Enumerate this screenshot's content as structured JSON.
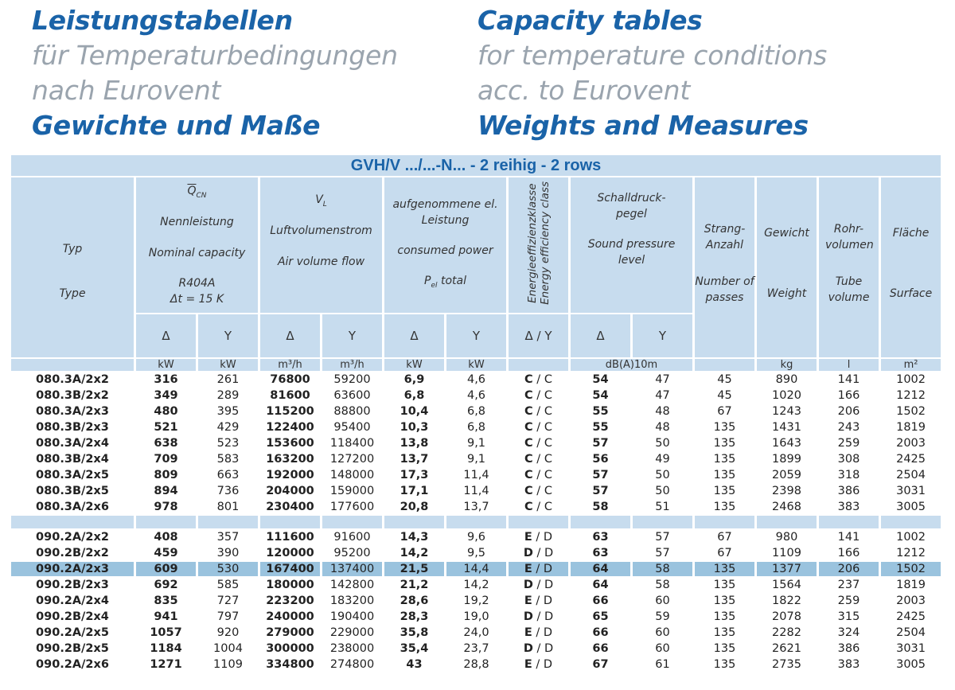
{
  "heading_de": {
    "line1": "Leistungstabellen",
    "line2": "für Temperaturbedingungen",
    "line3": "nach Eurovent",
    "line4": "Gewichte und Maße"
  },
  "heading_en": {
    "line1": "Capacity tables",
    "line2": "for temperature conditions",
    "line3": "acc. to Eurovent",
    "line4": "Weights and Measures"
  },
  "table": {
    "title": "GVH/V .../...-N... - 2 reihig - 2 rows",
    "headers": {
      "typ_de": "Typ",
      "typ_en": "Type",
      "cap_symbol": "Q",
      "cap_symbol_sub": "CN",
      "cap_de": "Nennleistung",
      "cap_en": "Nominal capacity",
      "cap_refrig": "R404A",
      "cap_dt": "Δt = 15 K",
      "air_symbol": "V",
      "air_symbol_sub": "L",
      "air_de": "Luftvolumenstrom",
      "air_en": "Air volume flow",
      "pow_de": "aufgenommene el. Leistung",
      "pow_en": "consumed power",
      "pow_symbol": "P",
      "pow_symbol_sub": "el",
      "pow_total": "total",
      "eff_de": "Energieeffizienzklasse",
      "eff_en": "Energy efficiency class",
      "snd_de": "Schalldruck-pegel",
      "snd_en": "Sound pressure level",
      "pass_de": "Strang-Anzahl",
      "pass_en": "Number of passes",
      "wt_de": "Gewicht",
      "wt_en": "Weight",
      "tube_de": "Rohr-volumen",
      "tube_en": "Tube volume",
      "surf_de": "Fläche",
      "surf_en": "Surface"
    },
    "symbols": {
      "delta": "Δ",
      "star": "Y",
      "delta_star": "Δ / Y"
    },
    "units": {
      "kw": "kW",
      "m3h": "m³/h",
      "dba": "dB(A)10m",
      "kg": "kg",
      "l": "l",
      "m2": "m²"
    },
    "group1": [
      {
        "typ": "080.3A/2x2",
        "cap_d": "316",
        "cap_y": "261",
        "air_d": "76800",
        "air_y": "59200",
        "pow_d": "6,9",
        "pow_y": "4,6",
        "eff_a": "C",
        "eff_b": "C",
        "snd_d": "54",
        "snd_y": "47",
        "passes": "45",
        "weight": "890",
        "tube": "141",
        "surface": "1002"
      },
      {
        "typ": "080.3B/2x2",
        "cap_d": "349",
        "cap_y": "289",
        "air_d": "81600",
        "air_y": "63600",
        "pow_d": "6,8",
        "pow_y": "4,6",
        "eff_a": "C",
        "eff_b": "C",
        "snd_d": "54",
        "snd_y": "47",
        "passes": "45",
        "weight": "1020",
        "tube": "166",
        "surface": "1212"
      },
      {
        "typ": "080.3A/2x3",
        "cap_d": "480",
        "cap_y": "395",
        "air_d": "115200",
        "air_y": "88800",
        "pow_d": "10,4",
        "pow_y": "6,8",
        "eff_a": "C",
        "eff_b": "C",
        "snd_d": "55",
        "snd_y": "48",
        "passes": "67",
        "weight": "1243",
        "tube": "206",
        "surface": "1502"
      },
      {
        "typ": "080.3B/2x3",
        "cap_d": "521",
        "cap_y": "429",
        "air_d": "122400",
        "air_y": "95400",
        "pow_d": "10,3",
        "pow_y": "6,8",
        "eff_a": "C",
        "eff_b": "C",
        "snd_d": "55",
        "snd_y": "48",
        "passes": "135",
        "weight": "1431",
        "tube": "243",
        "surface": "1819"
      },
      {
        "typ": "080.3A/2x4",
        "cap_d": "638",
        "cap_y": "523",
        "air_d": "153600",
        "air_y": "118400",
        "pow_d": "13,8",
        "pow_y": "9,1",
        "eff_a": "C",
        "eff_b": "C",
        "snd_d": "57",
        "snd_y": "50",
        "passes": "135",
        "weight": "1643",
        "tube": "259",
        "surface": "2003"
      },
      {
        "typ": "080.3B/2x4",
        "cap_d": "709",
        "cap_y": "583",
        "air_d": "163200",
        "air_y": "127200",
        "pow_d": "13,7",
        "pow_y": "9,1",
        "eff_a": "C",
        "eff_b": "C",
        "snd_d": "56",
        "snd_y": "49",
        "passes": "135",
        "weight": "1899",
        "tube": "308",
        "surface": "2425"
      },
      {
        "typ": "080.3A/2x5",
        "cap_d": "809",
        "cap_y": "663",
        "air_d": "192000",
        "air_y": "148000",
        "pow_d": "17,3",
        "pow_y": "11,4",
        "eff_a": "C",
        "eff_b": "C",
        "snd_d": "57",
        "snd_y": "50",
        "passes": "135",
        "weight": "2059",
        "tube": "318",
        "surface": "2504"
      },
      {
        "typ": "080.3B/2x5",
        "cap_d": "894",
        "cap_y": "736",
        "air_d": "204000",
        "air_y": "159000",
        "pow_d": "17,1",
        "pow_y": "11,4",
        "eff_a": "C",
        "eff_b": "C",
        "snd_d": "57",
        "snd_y": "50",
        "passes": "135",
        "weight": "2398",
        "tube": "386",
        "surface": "3031"
      },
      {
        "typ": "080.3A/2x6",
        "cap_d": "978",
        "cap_y": "801",
        "air_d": "230400",
        "air_y": "177600",
        "pow_d": "20,8",
        "pow_y": "13,7",
        "eff_a": "C",
        "eff_b": "C",
        "snd_d": "58",
        "snd_y": "51",
        "passes": "135",
        "weight": "2468",
        "tube": "383",
        "surface": "3005"
      }
    ],
    "group2": [
      {
        "typ": "090.2A/2x2",
        "cap_d": "408",
        "cap_y": "357",
        "air_d": "111600",
        "air_y": "91600",
        "pow_d": "14,3",
        "pow_y": "9,6",
        "eff_a": "E",
        "eff_b": "D",
        "snd_d": "63",
        "snd_y": "57",
        "passes": "67",
        "weight": "980",
        "tube": "141",
        "surface": "1002"
      },
      {
        "typ": "090.2B/2x2",
        "cap_d": "459",
        "cap_y": "390",
        "air_d": "120000",
        "air_y": "95200",
        "pow_d": "14,2",
        "pow_y": "9,5",
        "eff_a": "D",
        "eff_b": "D",
        "snd_d": "63",
        "snd_y": "57",
        "passes": "67",
        "weight": "1109",
        "tube": "166",
        "surface": "1212"
      },
      {
        "typ": "090.2A/2x3",
        "cap_d": "609",
        "cap_y": "530",
        "air_d": "167400",
        "air_y": "137400",
        "pow_d": "21,5",
        "pow_y": "14,4",
        "eff_a": "E",
        "eff_b": "D",
        "snd_d": "64",
        "snd_y": "58",
        "passes": "135",
        "weight": "1377",
        "tube": "206",
        "surface": "1502",
        "highlight": true
      },
      {
        "typ": "090.2B/2x3",
        "cap_d": "692",
        "cap_y": "585",
        "air_d": "180000",
        "air_y": "142800",
        "pow_d": "21,2",
        "pow_y": "14,2",
        "eff_a": "D",
        "eff_b": "D",
        "snd_d": "64",
        "snd_y": "58",
        "passes": "135",
        "weight": "1564",
        "tube": "237",
        "surface": "1819"
      },
      {
        "typ": "090.2A/2x4",
        "cap_d": "835",
        "cap_y": "727",
        "air_d": "223200",
        "air_y": "183200",
        "pow_d": "28,6",
        "pow_y": "19,2",
        "eff_a": "E",
        "eff_b": "D",
        "snd_d": "66",
        "snd_y": "60",
        "passes": "135",
        "weight": "1822",
        "tube": "259",
        "surface": "2003"
      },
      {
        "typ": "090.2B/2x4",
        "cap_d": "941",
        "cap_y": "797",
        "air_d": "240000",
        "air_y": "190400",
        "pow_d": "28,3",
        "pow_y": "19,0",
        "eff_a": "D",
        "eff_b": "D",
        "snd_d": "65",
        "snd_y": "59",
        "passes": "135",
        "weight": "2078",
        "tube": "315",
        "surface": "2425"
      },
      {
        "typ": "090.2A/2x5",
        "cap_d": "1057",
        "cap_y": "920",
        "air_d": "279000",
        "air_y": "229000",
        "pow_d": "35,8",
        "pow_y": "24,0",
        "eff_a": "E",
        "eff_b": "D",
        "snd_d": "66",
        "snd_y": "60",
        "passes": "135",
        "weight": "2282",
        "tube": "324",
        "surface": "2504"
      },
      {
        "typ": "090.2B/2x5",
        "cap_d": "1184",
        "cap_y": "1004",
        "air_d": "300000",
        "air_y": "238000",
        "pow_d": "35,4",
        "pow_y": "23,7",
        "eff_a": "D",
        "eff_b": "D",
        "snd_d": "66",
        "snd_y": "60",
        "passes": "135",
        "weight": "2621",
        "tube": "386",
        "surface": "3031"
      },
      {
        "typ": "090.2A/2x6",
        "cap_d": "1271",
        "cap_y": "1109",
        "air_d": "334800",
        "air_y": "274800",
        "pow_d": "43",
        "pow_y": "28,8",
        "eff_a": "E",
        "eff_b": "D",
        "snd_d": "67",
        "snd_y": "61",
        "passes": "135",
        "weight": "2735",
        "tube": "383",
        "surface": "3005"
      }
    ]
  }
}
